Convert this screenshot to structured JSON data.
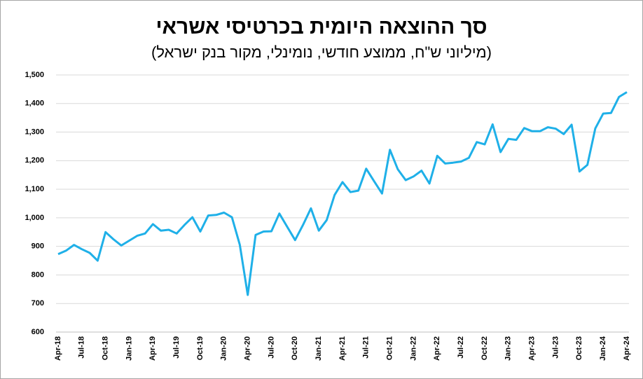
{
  "chart_data": {
    "type": "line",
    "title": "סך ההוצאה היומית בכרטיסי אשראי",
    "subtitle": "(מיליוני ש\"ח, ממוצע חודשי, נומינלי, מקור בנק ישראל)",
    "categories": [
      "Apr-18",
      null,
      null,
      "Jul-18",
      null,
      null,
      "Oct-18",
      null,
      null,
      "Jan-19",
      null,
      null,
      "Apr-19",
      null,
      null,
      "Jul-19",
      null,
      null,
      "Oct-19",
      null,
      null,
      "Jan-20",
      null,
      null,
      "Apr-20",
      null,
      null,
      "Jul-20",
      null,
      null,
      "Oct-20",
      null,
      null,
      "Jan-21",
      null,
      null,
      "Apr-21",
      null,
      null,
      "Jul-21",
      null,
      null,
      "Oct-21",
      null,
      null,
      "Jan-22",
      null,
      null,
      "Apr-22",
      null,
      null,
      "Jul-22",
      null,
      null,
      "Oct-22",
      null,
      null,
      "Jan-23",
      null,
      null,
      "Apr-23",
      null,
      null,
      "Jul-23",
      null,
      null,
      "Oct-23",
      null,
      null,
      "Jan-24",
      null,
      null,
      "Apr-24"
    ],
    "series": [
      {
        "color": "#1fb0e8",
        "values": [
          873,
          885,
          905,
          890,
          877,
          850,
          950,
          925,
          903,
          920,
          937,
          945,
          978,
          955,
          958,
          945,
          975,
          1002,
          952,
          1008,
          1010,
          1018,
          1002,
          905,
          730,
          940,
          952,
          953,
          1015,
          968,
          922,
          975,
          1033,
          955,
          992,
          1080,
          1125,
          1090,
          1095,
          1172,
          1128,
          1085,
          1238,
          1170,
          1132,
          1145,
          1165,
          1120,
          1217,
          1190,
          1193,
          1197,
          1210,
          1265,
          1257,
          1327,
          1230,
          1276,
          1273,
          1314,
          1303,
          1303,
          1317,
          1312,
          1293,
          1326,
          1162,
          1185,
          1313,
          1365,
          1367,
          1423,
          1440
        ]
      }
    ],
    "ylim": [
      600,
      1500
    ],
    "yticks": [
      600,
      700,
      800,
      900,
      {
        "value": 1000,
        "label": "1,000"
      },
      {
        "value": 1100,
        "label": "1,100"
      },
      {
        "value": 1200,
        "label": "1,200"
      },
      {
        "value": 1300,
        "label": "1,300"
      },
      {
        "value": 1400,
        "label": "1,400"
      },
      {
        "value": 1500,
        "label": "1,500"
      }
    ],
    "grid": true
  }
}
